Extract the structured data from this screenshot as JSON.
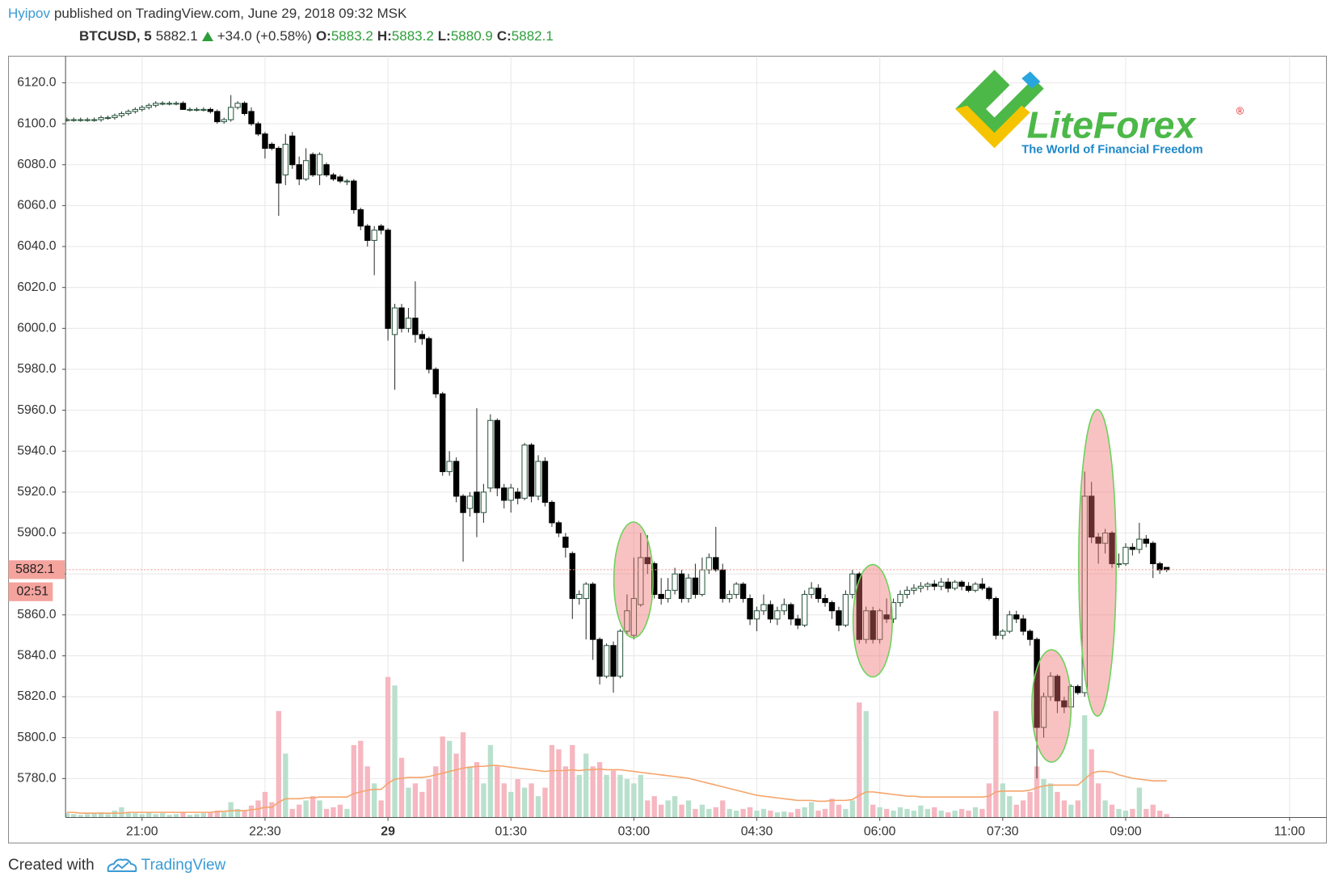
{
  "header": {
    "author": "Hyipov",
    "published": "published on TradingView.com, June 29, 2018 09:32 MSK",
    "symbol": "BTCUSD, 5",
    "last": "5882.1",
    "change": "+34.0 (+0.58%)",
    "o_label": "O:",
    "o": "5883.2",
    "h_label": "H:",
    "h": "5883.2",
    "l_label": "L:",
    "l": "5880.9",
    "c_label": "C:",
    "c": "5882.1"
  },
  "logo": {
    "name": "LiteForex",
    "mark": "®",
    "tagline": "The World of Financial Freedom"
  },
  "footer": {
    "created": "Created with",
    "brand": "TradingView"
  },
  "chart_data": {
    "type": "candlestick",
    "xlim": [
      "20:04",
      "11:27"
    ],
    "xticks": [
      "21:00",
      "22:30",
      {
        "value": "00:00",
        "label": "29"
      },
      "01:30",
      "03:00",
      "04:30",
      "06:00",
      "07:30",
      "09:00",
      "11:00"
    ],
    "ylim": [
      5761,
      6133
    ],
    "yticks": [
      {
        "value": 5780,
        "label": "5780.0"
      },
      {
        "value": 5800,
        "label": "5800.0"
      },
      {
        "value": 5820,
        "label": "5820.0"
      },
      {
        "value": 5840,
        "label": "5840.0"
      },
      {
        "value": 5860,
        "label": "5860.0"
      },
      {
        "value": 5880,
        "label": "5880.0"
      },
      {
        "value": 5900,
        "label": "5900.0"
      },
      {
        "value": 5920,
        "label": "5920.0"
      },
      {
        "value": 5940,
        "label": "5940.0"
      },
      {
        "value": 5960,
        "label": "5960.0"
      },
      {
        "value": 5980,
        "label": "5980.0"
      },
      {
        "value": 6000,
        "label": "6000.0"
      },
      {
        "value": 6020,
        "label": "6020.0"
      },
      {
        "value": 6040,
        "label": "6040.0"
      },
      {
        "value": 6060,
        "label": "6060.0"
      },
      {
        "value": 6080,
        "label": "6080.0"
      },
      {
        "value": 6100,
        "label": "6100.0"
      },
      {
        "value": 6120,
        "label": "6120.0"
      }
    ],
    "grid": true,
    "last_price": 5882.1,
    "countdown": "02:51",
    "up_color": "#ffffff",
    "down_color": "#000000",
    "up_volume_color": "#b9e0cd",
    "down_volume_color": "#f6b7c0",
    "ma_color": "#f5a46a",
    "x": [
      "20:05",
      "20:10",
      "20:15",
      "20:20",
      "20:25",
      "20:30",
      "20:35",
      "20:40",
      "20:45",
      "20:50",
      "20:55",
      "21:00",
      "21:05",
      "21:10",
      "21:15",
      "21:20",
      "21:25",
      "21:30",
      "21:35",
      "21:40",
      "21:45",
      "21:50",
      "21:55",
      "22:00",
      "22:05",
      "22:10",
      "22:15",
      "22:20",
      "22:25",
      "22:30",
      "22:35",
      "22:40",
      "22:45",
      "22:50",
      "22:55",
      "23:00",
      "23:05",
      "23:10",
      "23:15",
      "23:20",
      "23:25",
      "23:30",
      "23:35",
      "23:40",
      "23:45",
      "23:50",
      "23:55",
      "00:00",
      "00:05",
      "00:10",
      "00:15",
      "00:20",
      "00:25",
      "00:30",
      "00:35",
      "00:40",
      "00:45",
      "00:50",
      "00:55",
      "01:00",
      "01:05",
      "01:10",
      "01:15",
      "01:20",
      "01:25",
      "01:30",
      "01:35",
      "01:40",
      "01:45",
      "01:50",
      "01:55",
      "02:00",
      "02:05",
      "02:10",
      "02:15",
      "02:20",
      "02:25",
      "02:30",
      "02:35",
      "02:40",
      "02:45",
      "02:50",
      "02:55",
      "03:00",
      "03:05",
      "03:10",
      "03:15",
      "03:20",
      "03:25",
      "03:30",
      "03:35",
      "03:40",
      "03:45",
      "03:50",
      "03:55",
      "04:00",
      "04:05",
      "04:10",
      "04:15",
      "04:20",
      "04:25",
      "04:30",
      "04:35",
      "04:40",
      "04:45",
      "04:50",
      "04:55",
      "05:00",
      "05:05",
      "05:10",
      "05:15",
      "05:20",
      "05:25",
      "05:30",
      "05:35",
      "05:40",
      "05:45",
      "05:50",
      "05:55",
      "06:00",
      "06:05",
      "06:10",
      "06:15",
      "06:20",
      "06:25",
      "06:30",
      "06:35",
      "06:40",
      "06:45",
      "06:50",
      "06:55",
      "07:00",
      "07:05",
      "07:10",
      "07:15",
      "07:20",
      "07:25",
      "07:30",
      "07:35",
      "07:40",
      "07:45",
      "07:50",
      "07:55",
      "08:00",
      "08:05",
      "08:10",
      "08:15",
      "08:20",
      "08:25",
      "08:30",
      "08:35",
      "08:40",
      "08:45",
      "08:50",
      "08:55",
      "09:00",
      "09:05",
      "09:10",
      "09:15",
      "09:20",
      "09:25",
      "09:30"
    ],
    "open": [
      6102,
      6102,
      6102,
      6102,
      6102,
      6102,
      6103,
      6103,
      6104,
      6105,
      6106,
      6107,
      6108,
      6109,
      6110,
      6110,
      6110,
      6110,
      6107,
      6107,
      6107,
      6107,
      6106,
      6101,
      6102,
      6108,
      6110,
      6106,
      6100,
      6095,
      6090,
      6088,
      6075,
      6094,
      6080,
      6073,
      6085,
      6075,
      6080,
      6075,
      6074,
      6072,
      6072,
      6058,
      6050,
      6043,
      6050,
      6048,
      5997,
      6010,
      6000,
      6005,
      5997,
      5995,
      5980,
      5968,
      5930,
      5935,
      5918,
      5912,
      5920,
      5910,
      5922,
      5955,
      5922,
      5916,
      5920,
      5917,
      5943,
      5918,
      5935,
      5915,
      5905,
      5898,
      5890,
      5868,
      5868,
      5875,
      5848,
      5830,
      5845,
      5830,
      5852,
      5850,
      5865,
      5888,
      5885,
      5870,
      5868,
      5872,
      5880,
      5868,
      5878,
      5870,
      5882,
      5888,
      5882,
      5868,
      5870,
      5875,
      5868,
      5858,
      5862,
      5865,
      5858,
      5862,
      5865,
      5858,
      5855,
      5870,
      5873,
      5868,
      5866,
      5862,
      5855,
      5870,
      5880,
      5848,
      5862,
      5848,
      5860,
      5858,
      5866,
      5870,
      5872,
      5873,
      5874,
      5875,
      5874,
      5876,
      5873,
      5876,
      5874,
      5872,
      5875,
      5873,
      5868,
      5850,
      5852,
      5860,
      5858,
      5852,
      5848,
      5805,
      5820,
      5830,
      5818,
      5815,
      5825,
      5822,
      5918,
      5898,
      5895,
      5900,
      5885,
      5885,
      5893,
      5892,
      5897,
      5895,
      5885,
      5883.2
    ],
    "high": [
      6103,
      6103,
      6103,
      6103,
      6103,
      6104,
      6104,
      6105,
      6106,
      6107,
      6108,
      6109,
      6110,
      6111,
      6111,
      6111,
      6111,
      6111,
      6108,
      6108,
      6108,
      6108,
      6107,
      6103,
      6114,
      6111,
      6111,
      6108,
      6101,
      6096,
      6091,
      6089,
      6095,
      6096,
      6084,
      6088,
      6086,
      6086,
      6081,
      6076,
      6075,
      6073,
      6073,
      6059,
      6051,
      6050,
      6051,
      6049,
      6012,
      6012,
      6010,
      6023,
      5999,
      5996,
      5981,
      5969,
      5940,
      5937,
      5919,
      5920,
      5961,
      5924,
      5958,
      5956,
      5924,
      5924,
      5922,
      5944,
      5944,
      5938,
      5937,
      5916,
      5906,
      5900,
      5891,
      5872,
      5876,
      5876,
      5849,
      5846,
      5847,
      5853,
      5870,
      5888,
      5900,
      5899,
      5886,
      5878,
      5878,
      5883,
      5882,
      5880,
      5885,
      5888,
      5890,
      5903,
      5885,
      5872,
      5876,
      5876,
      5870,
      5864,
      5870,
      5867,
      5864,
      5868,
      5866,
      5860,
      5872,
      5876,
      5875,
      5870,
      5867,
      5864,
      5872,
      5882,
      5881,
      5864,
      5864,
      5863,
      5868,
      5868,
      5872,
      5874,
      5875,
      5876,
      5876,
      5877,
      5878,
      5878,
      5877,
      5877,
      5876,
      5876,
      5878,
      5874,
      5869,
      5853,
      5862,
      5862,
      5860,
      5853,
      5849,
      5822,
      5832,
      5831,
      5820,
      5826,
      5826,
      5930,
      5925,
      5900,
      5902,
      5901,
      5890,
      5895,
      5895,
      5905,
      5899,
      5896,
      5886,
      5883.2
    ],
    "low": [
      6101,
      6101,
      6101,
      6101,
      6101,
      6101,
      6102,
      6102,
      6103,
      6104,
      6105,
      6106,
      6107,
      6108,
      6109,
      6109,
      6109,
      6109,
      6106,
      6106,
      6106,
      6105,
      6100,
      6100,
      6101,
      6107,
      6104,
      6099,
      6094,
      6083,
      6087,
      6055,
      6070,
      6078,
      6070,
      6072,
      6074,
      6070,
      6074,
      6072,
      6071,
      6070,
      6056,
      6048,
      6040,
      6026,
      6046,
      5994,
      5970,
      5998,
      5998,
      5993,
      5992,
      5978,
      5966,
      5928,
      5928,
      5915,
      5886,
      5908,
      5898,
      5905,
      5920,
      5918,
      5912,
      5910,
      5914,
      5916,
      5915,
      5916,
      5913,
      5903,
      5898,
      5888,
      5858,
      5865,
      5848,
      5838,
      5826,
      5829,
      5822,
      5829,
      5850,
      5848,
      5864,
      5880,
      5868,
      5865,
      5866,
      5870,
      5866,
      5866,
      5868,
      5869,
      5880,
      5881,
      5866,
      5866,
      5868,
      5866,
      5855,
      5852,
      5860,
      5856,
      5855,
      5860,
      5855,
      5853,
      5854,
      5868,
      5866,
      5864,
      5858,
      5852,
      5854,
      5868,
      5846,
      5846,
      5846,
      5846,
      5856,
      5856,
      5864,
      5868,
      5870,
      5871,
      5872,
      5872,
      5872,
      5871,
      5872,
      5872,
      5871,
      5871,
      5872,
      5867,
      5848,
      5848,
      5851,
      5856,
      5850,
      5845,
      5780,
      5800,
      5818,
      5812,
      5812,
      5813,
      5821,
      5820,
      5895,
      5885,
      5890,
      5883,
      5883,
      5884,
      5889,
      5890,
      5893,
      5878,
      5880,
      5880.9
    ],
    "close": [
      6102,
      6102,
      6102,
      6102,
      6102,
      6103,
      6103,
      6104,
      6105,
      6106,
      6107,
      6108,
      6109,
      6110,
      6110,
      6110,
      6110,
      6107,
      6107,
      6107,
      6107,
      6106,
      6101,
      6102,
      6108,
      6110,
      6105,
      6100,
      6095,
      6088,
      6088,
      6071,
      6090,
      6080,
      6073,
      6082,
      6075,
      6085,
      6075,
      6073,
      6072,
      6072,
      6058,
      6050,
      6043,
      6048,
      6048,
      6000,
      6010,
      6000,
      6005,
      5997,
      5995,
      5980,
      5968,
      5930,
      5935,
      5918,
      5910,
      5918,
      5910,
      5920,
      5955,
      5922,
      5916,
      5922,
      5917,
      5943,
      5918,
      5935,
      5915,
      5905,
      5900,
      5893,
      5868,
      5870,
      5875,
      5848,
      5830,
      5845,
      5830,
      5852,
      5862,
      5868,
      5888,
      5885,
      5870,
      5868,
      5872,
      5880,
      5868,
      5878,
      5870,
      5882,
      5888,
      5882,
      5868,
      5870,
      5875,
      5868,
      5858,
      5862,
      5865,
      5858,
      5862,
      5865,
      5858,
      5855,
      5870,
      5873,
      5868,
      5866,
      5862,
      5855,
      5870,
      5880,
      5848,
      5862,
      5848,
      5862,
      5858,
      5866,
      5870,
      5872,
      5873,
      5874,
      5875,
      5874,
      5876,
      5873,
      5876,
      5874,
      5872,
      5875,
      5873,
      5868,
      5850,
      5852,
      5860,
      5858,
      5852,
      5848,
      5805,
      5820,
      5830,
      5818,
      5815,
      5825,
      5822,
      5918,
      5898,
      5895,
      5900,
      5885,
      5885,
      5893,
      5892,
      5897,
      5895,
      5885,
      5882,
      5882.1
    ],
    "volume": [
      5,
      4,
      3,
      4,
      5,
      6,
      4,
      8,
      12,
      6,
      5,
      4,
      6,
      4,
      5,
      3,
      4,
      6,
      3,
      4,
      5,
      6,
      8,
      6,
      18,
      10,
      8,
      14,
      20,
      30,
      18,
      125,
      75,
      10,
      15,
      20,
      25,
      20,
      10,
      12,
      15,
      10,
      85,
      90,
      60,
      40,
      20,
      165,
      155,
      70,
      35,
      40,
      30,
      45,
      60,
      95,
      90,
      75,
      100,
      60,
      65,
      40,
      85,
      60,
      40,
      30,
      45,
      35,
      40,
      25,
      35,
      85,
      80,
      60,
      85,
      50,
      75,
      60,
      65,
      50,
      55,
      50,
      45,
      40,
      50,
      20,
      25,
      15,
      20,
      25,
      15,
      20,
      10,
      15,
      10,
      12,
      20,
      10,
      8,
      10,
      12,
      8,
      10,
      8,
      6,
      7,
      6,
      10,
      12,
      18,
      8,
      10,
      22,
      15,
      10,
      20,
      135,
      125,
      15,
      12,
      10,
      8,
      12,
      10,
      8,
      14,
      10,
      12,
      8,
      6,
      8,
      10,
      8,
      12,
      10,
      40,
      125,
      40,
      25,
      15,
      20,
      30,
      60,
      45,
      40,
      30,
      20,
      15,
      20,
      120,
      80,
      40,
      20,
      15,
      10,
      8,
      10,
      35,
      10,
      15,
      8,
      4
    ],
    "volume_ma": [
      6,
      6,
      5,
      5,
      5,
      5,
      5,
      5,
      5,
      6,
      6,
      6,
      6,
      6,
      6,
      6,
      6,
      6,
      6,
      6,
      6,
      6,
      7,
      7,
      8,
      8,
      8,
      9,
      10,
      12,
      12,
      18,
      22,
      22,
      22,
      23,
      23,
      24,
      24,
      24,
      24,
      24,
      28,
      30,
      32,
      33,
      33,
      40,
      45,
      46,
      47,
      47,
      47,
      48,
      50,
      52,
      54,
      56,
      58,
      59,
      60,
      60,
      61,
      61,
      60,
      59,
      58,
      57,
      56,
      55,
      54,
      55,
      55,
      55,
      56,
      55,
      56,
      56,
      57,
      56,
      56,
      56,
      55,
      54,
      53,
      52,
      51,
      50,
      49,
      48,
      47,
      46,
      44,
      42,
      40,
      38,
      36,
      34,
      32,
      30,
      28,
      26,
      25,
      24,
      23,
      22,
      21,
      20,
      20,
      20,
      19,
      19,
      20,
      20,
      20,
      21,
      26,
      30,
      30,
      29,
      28,
      27,
      26,
      25,
      25,
      24,
      24,
      24,
      24,
      24,
      24,
      24,
      24,
      24,
      24,
      25,
      30,
      31,
      31,
      31,
      31,
      32,
      35,
      37,
      38,
      38,
      38,
      38,
      38,
      45,
      52,
      54,
      54,
      53,
      50,
      48,
      46,
      45,
      44,
      43,
      43,
      43
    ]
  }
}
